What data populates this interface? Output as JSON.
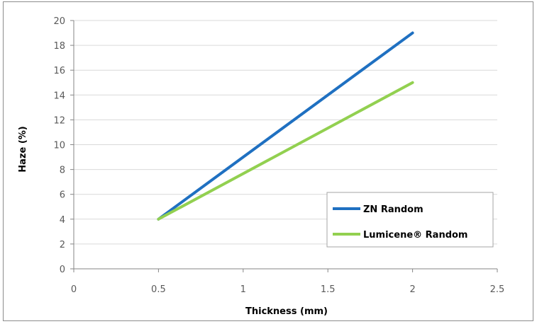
{
  "chart_data": {
    "type": "line",
    "xlabel": "Thickness (mm)",
    "ylabel": "Haze (%)",
    "xlim": [
      0,
      2.5
    ],
    "ylim": [
      0,
      20
    ],
    "xticks": [
      "0",
      "0.5",
      "1",
      "1.5",
      "2",
      "2.5"
    ],
    "yticks": [
      "0",
      "2",
      "4",
      "6",
      "8",
      "10",
      "12",
      "14",
      "16",
      "18",
      "20"
    ],
    "grid": true,
    "legend_position": "bottom-right",
    "series": [
      {
        "name": "ZN Random",
        "color": "#1f70c1",
        "x": [
          0.5,
          2
        ],
        "y": [
          4,
          19
        ]
      },
      {
        "name": "Lumicene® Random",
        "color": "#92d050",
        "x": [
          0.5,
          2
        ],
        "y": [
          4,
          15
        ]
      }
    ]
  }
}
